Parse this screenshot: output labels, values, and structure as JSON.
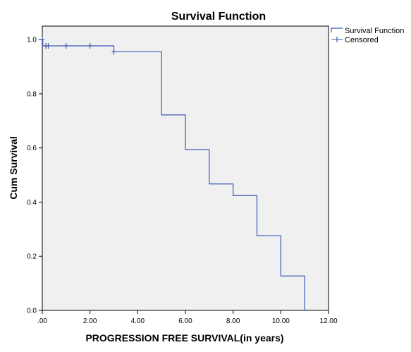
{
  "chart_data": {
    "type": "line",
    "subtype": "kaplan-meier-step",
    "title": "Survival Function",
    "xlabel": "PROGRESSION FREE SURVIVAL(in years)",
    "ylabel": "Cum Survival",
    "xlim": [
      0,
      12
    ],
    "ylim": [
      0,
      1.05
    ],
    "x_ticks": [
      0,
      2,
      4,
      6,
      8,
      10,
      12
    ],
    "x_tick_labels": [
      ".00",
      "2.00",
      "4.00",
      "6.00",
      "8.00",
      "10.00",
      "12.00"
    ],
    "y_ticks": [
      0,
      0.2,
      0.4,
      0.6,
      0.8,
      1.0
    ],
    "y_tick_labels": [
      "0.0",
      "0.2",
      "0.4",
      "0.6",
      "0.8",
      "1.0"
    ],
    "grid": false,
    "legend_position": "top-right",
    "line_color": "#3a5bb5",
    "plot_background": "#f0f0f0",
    "series": [
      {
        "name": "Survival Function",
        "steps": [
          {
            "x": 0,
            "y": 1.0
          },
          {
            "x": 0.02,
            "y": 0.977
          },
          {
            "x": 3.0,
            "y": 0.955
          },
          {
            "x": 5.0,
            "y": 0.722
          },
          {
            "x": 6.0,
            "y": 0.594
          },
          {
            "x": 7.0,
            "y": 0.467
          },
          {
            "x": 8.0,
            "y": 0.424
          },
          {
            "x": 9.0,
            "y": 0.276
          },
          {
            "x": 10.0,
            "y": 0.127
          },
          {
            "x": 11.0,
            "y": 0.0
          }
        ]
      },
      {
        "name": "Censored",
        "points": [
          {
            "x": 0.0,
            "y": 1.0
          },
          {
            "x": 0.15,
            "y": 0.977
          },
          {
            "x": 0.25,
            "y": 0.977
          },
          {
            "x": 1.0,
            "y": 0.977
          },
          {
            "x": 2.0,
            "y": 0.977
          },
          {
            "x": 3.0,
            "y": 0.955
          }
        ]
      }
    ]
  }
}
